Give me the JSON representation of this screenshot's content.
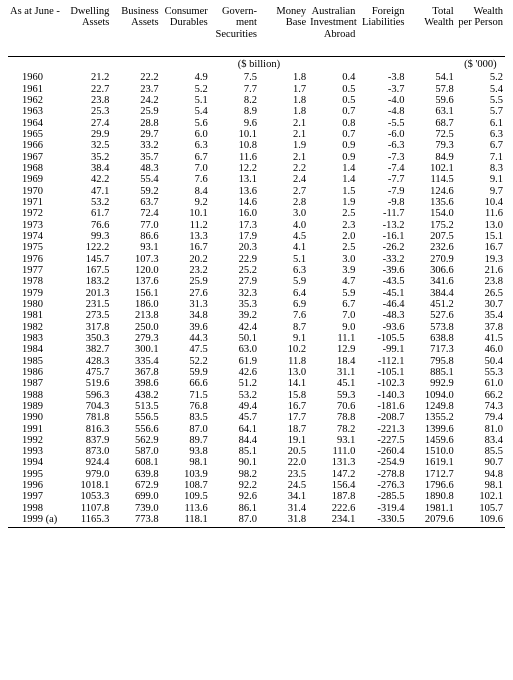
{
  "columns": [
    "As at June -",
    "Dwelling Assets",
    "Business Assets",
    "Consumer Durables",
    "Govern-\nment Securities",
    "Money Base",
    "Australian Investment Abroad",
    "Foreign Liabilities",
    "Total Wealth",
    "Wealth per Person"
  ],
  "unit_group_label": "($ billion)",
  "unit_last_label": "($ '000)",
  "rows": [
    [
      "1960",
      "21.2",
      "22.2",
      "4.9",
      "7.5",
      "1.8",
      "0.4",
      "-3.8",
      "54.1",
      "5.2"
    ],
    [
      "1961",
      "22.7",
      "23.7",
      "5.2",
      "7.7",
      "1.7",
      "0.5",
      "-3.7",
      "57.8",
      "5.4"
    ],
    [
      "1962",
      "23.8",
      "24.2",
      "5.1",
      "8.2",
      "1.8",
      "0.5",
      "-4.0",
      "59.6",
      "5.5"
    ],
    [
      "1963",
      "25.3",
      "25.9",
      "5.4",
      "8.9",
      "1.8",
      "0.7",
      "-4.8",
      "63.1",
      "5.7"
    ],
    [
      "1964",
      "27.4",
      "28.8",
      "5.6",
      "9.6",
      "2.1",
      "0.8",
      "-5.5",
      "68.7",
      "6.1"
    ],
    [
      "1965",
      "29.9",
      "29.7",
      "6.0",
      "10.1",
      "2.1",
      "0.7",
      "-6.0",
      "72.5",
      "6.3"
    ],
    [
      "1966",
      "32.5",
      "33.2",
      "6.3",
      "10.8",
      "1.9",
      "0.9",
      "-6.3",
      "79.3",
      "6.7"
    ],
    [
      "1967",
      "35.2",
      "35.7",
      "6.7",
      "11.6",
      "2.1",
      "0.9",
      "-7.3",
      "84.9",
      "7.1"
    ],
    [
      "1968",
      "38.4",
      "48.3",
      "7.0",
      "12.2",
      "2.2",
      "1.4",
      "-7.4",
      "102.1",
      "8.3"
    ],
    [
      "1969",
      "42.2",
      "55.4",
      "7.6",
      "13.1",
      "2.4",
      "1.4",
      "-7.7",
      "114.5",
      "9.1"
    ],
    [
      "1970",
      "47.1",
      "59.2",
      "8.4",
      "13.6",
      "2.7",
      "1.5",
      "-7.9",
      "124.6",
      "9.7"
    ],
    [
      "1971",
      "53.2",
      "63.7",
      "9.2",
      "14.6",
      "2.8",
      "1.9",
      "-9.8",
      "135.6",
      "10.4"
    ],
    [
      "1972",
      "61.7",
      "72.4",
      "10.1",
      "16.0",
      "3.0",
      "2.5",
      "-11.7",
      "154.0",
      "11.6"
    ],
    [
      "1973",
      "76.6",
      "77.0",
      "11.2",
      "17.3",
      "4.0",
      "2.3",
      "-13.2",
      "175.2",
      "13.0"
    ],
    [
      "1974",
      "99.3",
      "86.6",
      "13.3",
      "17.9",
      "4.5",
      "2.0",
      "-16.1",
      "207.5",
      "15.1"
    ],
    [
      "1975",
      "122.2",
      "93.1",
      "16.7",
      "20.3",
      "4.1",
      "2.5",
      "-26.2",
      "232.6",
      "16.7"
    ],
    [
      "1976",
      "145.7",
      "107.3",
      "20.2",
      "22.9",
      "5.1",
      "3.0",
      "-33.2",
      "270.9",
      "19.3"
    ],
    [
      "1977",
      "167.5",
      "120.0",
      "23.2",
      "25.2",
      "6.3",
      "3.9",
      "-39.6",
      "306.6",
      "21.6"
    ],
    [
      "1978",
      "183.2",
      "137.6",
      "25.9",
      "27.9",
      "5.9",
      "4.7",
      "-43.5",
      "341.6",
      "23.8"
    ],
    [
      "1979",
      "201.3",
      "156.1",
      "27.6",
      "32.3",
      "6.4",
      "5.9",
      "-45.1",
      "384.4",
      "26.5"
    ],
    [
      "1980",
      "231.5",
      "186.0",
      "31.3",
      "35.3",
      "6.9",
      "6.7",
      "-46.4",
      "451.2",
      "30.7"
    ],
    [
      "1981",
      "273.5",
      "213.8",
      "34.8",
      "39.2",
      "7.6",
      "7.0",
      "-48.3",
      "527.6",
      "35.4"
    ],
    [
      "1982",
      "317.8",
      "250.0",
      "39.6",
      "42.4",
      "8.7",
      "9.0",
      "-93.6",
      "573.8",
      "37.8"
    ],
    [
      "1983",
      "350.3",
      "279.3",
      "44.3",
      "50.1",
      "9.1",
      "11.1",
      "-105.5",
      "638.8",
      "41.5"
    ],
    [
      "1984",
      "382.7",
      "300.1",
      "47.5",
      "63.0",
      "10.2",
      "12.9",
      "-99.1",
      "717.3",
      "46.0"
    ],
    [
      "1985",
      "428.3",
      "335.4",
      "52.2",
      "61.9",
      "11.8",
      "18.4",
      "-112.1",
      "795.8",
      "50.4"
    ],
    [
      "1986",
      "475.7",
      "367.8",
      "59.9",
      "42.6",
      "13.0",
      "31.1",
      "-105.1",
      "885.1",
      "55.3"
    ],
    [
      "1987",
      "519.6",
      "398.6",
      "66.6",
      "51.2",
      "14.1",
      "45.1",
      "-102.3",
      "992.9",
      "61.0"
    ],
    [
      "1988",
      "596.3",
      "438.2",
      "71.5",
      "53.2",
      "15.8",
      "59.3",
      "-140.3",
      "1094.0",
      "66.2"
    ],
    [
      "1989",
      "704.3",
      "513.5",
      "76.8",
      "49.4",
      "16.7",
      "70.6",
      "-181.6",
      "1249.8",
      "74.3"
    ],
    [
      "1990",
      "781.8",
      "556.5",
      "83.5",
      "45.7",
      "17.7",
      "78.8",
      "-208.7",
      "1355.2",
      "79.4"
    ],
    [
      "1991",
      "816.3",
      "556.6",
      "87.0",
      "64.1",
      "18.7",
      "78.2",
      "-221.3",
      "1399.6",
      "81.0"
    ],
    [
      "1992",
      "837.9",
      "562.9",
      "89.7",
      "84.4",
      "19.1",
      "93.1",
      "-227.5",
      "1459.6",
      "83.4"
    ],
    [
      "1993",
      "873.0",
      "587.0",
      "93.8",
      "85.1",
      "20.5",
      "111.0",
      "-260.4",
      "1510.0",
      "85.5"
    ],
    [
      "1994",
      "924.4",
      "608.1",
      "98.1",
      "90.1",
      "22.0",
      "131.3",
      "-254.9",
      "1619.1",
      "90.7"
    ],
    [
      "1995",
      "979.0",
      "639.8",
      "103.9",
      "98.2",
      "23.5",
      "147.2",
      "-278.8",
      "1712.7",
      "94.8"
    ],
    [
      "1996",
      "1018.1",
      "672.9",
      "108.7",
      "92.2",
      "24.5",
      "156.4",
      "-276.3",
      "1796.6",
      "98.1"
    ],
    [
      "1997",
      "1053.3",
      "699.0",
      "109.5",
      "92.6",
      "34.1",
      "187.8",
      "-285.5",
      "1890.8",
      "102.1"
    ],
    [
      "1998",
      "1107.8",
      "739.0",
      "113.6",
      "86.1",
      "31.4",
      "222.6",
      "-319.4",
      "1981.1",
      "105.7"
    ],
    [
      "1999 (a)",
      "1165.3",
      "773.8",
      "118.1",
      "87.0",
      "31.8",
      "234.1",
      "-330.5",
      "2079.6",
      "109.6"
    ]
  ],
  "note_marker": "(a)"
}
